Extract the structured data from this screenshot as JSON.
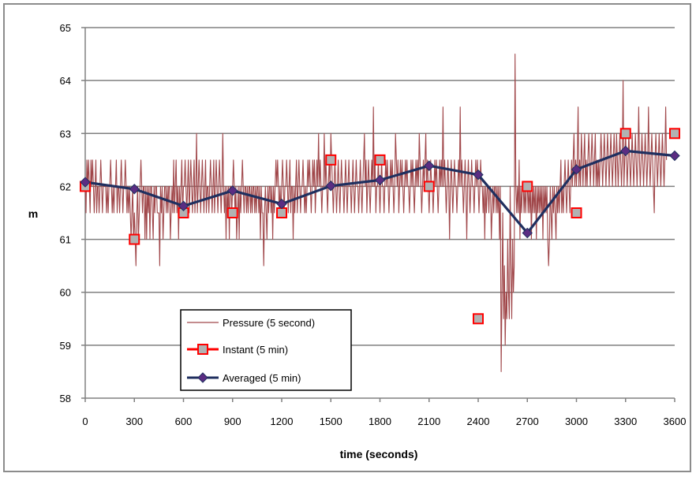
{
  "chart_data": {
    "type": "line",
    "title": "",
    "xlabel": "time (seconds)",
    "ylabel": "m",
    "xlim": [
      0,
      3600
    ],
    "ylim": [
      58,
      65
    ],
    "x_ticks": [
      0,
      300,
      600,
      900,
      1200,
      1500,
      1800,
      2100,
      2400,
      2700,
      3000,
      3300,
      3600
    ],
    "y_ticks": [
      58,
      59,
      60,
      61,
      62,
      63,
      64,
      65
    ],
    "grid": "horizontal",
    "legend_position": "bottom-left",
    "colors": {
      "pressure": "#a0474a",
      "instant": "#ff0000",
      "instant_fill": "#b2b2b2",
      "averaged": "#1f2f5f",
      "averaged_marker": "#5b2d82",
      "grid": "#808080"
    },
    "series": [
      {
        "name": "Pressure (5 second)",
        "sampling_seconds": 5,
        "values": [
          62,
          61.5,
          62.5,
          62,
          62.5,
          62,
          61.5,
          62.5,
          62,
          62.5,
          62,
          61.5,
          62,
          62.5,
          61.5,
          62,
          62,
          61.5,
          62,
          62.5,
          62,
          61.5,
          62,
          62,
          62,
          62,
          61.5,
          62,
          61.5,
          62,
          62,
          62.5,
          62,
          61.5,
          62,
          61.5,
          62,
          62,
          62.5,
          61.5,
          62,
          62,
          61.5,
          62,
          62.5,
          62,
          61.5,
          62,
          62,
          62.5,
          62,
          61.5,
          62,
          61.5,
          62,
          61.5,
          61,
          61.5,
          62,
          61,
          61.5,
          61,
          60.5,
          61.5,
          62,
          61,
          61.5,
          62,
          62.5,
          62,
          61.5,
          62,
          62,
          61,
          62,
          61,
          62,
          61.5,
          62,
          61,
          62,
          62,
          61.5,
          61,
          62,
          61.5,
          62,
          62,
          61.5,
          61.5,
          61.5,
          60.5,
          62,
          61.5,
          62,
          61,
          61.5,
          62,
          62,
          61.5,
          62,
          61.5,
          62,
          62,
          61,
          61.5,
          62,
          61.5,
          62.5,
          61.5,
          62,
          62.5,
          61.5,
          62,
          61,
          62,
          61.5,
          62,
          62.5,
          61.5,
          62,
          62,
          62.5,
          62,
          61.5,
          62,
          62.5,
          61.5,
          62,
          62.5,
          62,
          61.5,
          62,
          62.5,
          61.5,
          62,
          63,
          61.5,
          62,
          62.5,
          62,
          61.5,
          62,
          62.5,
          62,
          61.5,
          62,
          62.5,
          61.5,
          62,
          62,
          61.5,
          62,
          62.5,
          62,
          61.5,
          62,
          62.5,
          61.5,
          62,
          62.5,
          62,
          61.5,
          62,
          62.5,
          62,
          61.5,
          62,
          63,
          62,
          61.5,
          62,
          61,
          62,
          61.5,
          62,
          61,
          62,
          62,
          61.5,
          62,
          62.5,
          62,
          61.5,
          62,
          61,
          61.5,
          62,
          61,
          62,
          61.5,
          62,
          62.5,
          62,
          61.5,
          62,
          62,
          61.5,
          62,
          61.5,
          62,
          62,
          61.5,
          62,
          61.5,
          62,
          62,
          61.5,
          62,
          61.5,
          62,
          62,
          61.5,
          62,
          61,
          62,
          61.5,
          61.5,
          60.5,
          61.5,
          62,
          61.5,
          61,
          62,
          61.5,
          62,
          62,
          61.5,
          62,
          61,
          62,
          61.5,
          62,
          62.5,
          62,
          62.5,
          62,
          61.5,
          62,
          61.5,
          62,
          62.5,
          62,
          61.5,
          62,
          62,
          62.5,
          62,
          61.5,
          62,
          62.5,
          61.5,
          62,
          62,
          61,
          62,
          61.5,
          62,
          62.5,
          61.5,
          62,
          62.5,
          62,
          61.5,
          62,
          62,
          62.5,
          62,
          61.5,
          62,
          61.5,
          62,
          62.5,
          62,
          62.5,
          62,
          61.5,
          62,
          62.5,
          62,
          62.5,
          61.5,
          62,
          62.5,
          62,
          63,
          62,
          62.5,
          62,
          61.5,
          62,
          62,
          63,
          62,
          62.5,
          62,
          61.5,
          62,
          62.5,
          62,
          63,
          62.5,
          62,
          61.5,
          62,
          62.5,
          62,
          61.5,
          62,
          62.5,
          62,
          61.5,
          62,
          62.5,
          62,
          62,
          61.5,
          62,
          62.5,
          62,
          61.5,
          62,
          62.5,
          62,
          62,
          61.5,
          62,
          62.5,
          62,
          61.5,
          62,
          62.5,
          62,
          62,
          61.5,
          62,
          62.5,
          62,
          61.5,
          62,
          62.5,
          63,
          62,
          62.5,
          61.5,
          62,
          62.5,
          62,
          61.5,
          62,
          62.5,
          62,
          63.5,
          62,
          62.5,
          61.5,
          62,
          62,
          62.5,
          62,
          61.5,
          62,
          62.5,
          62,
          62,
          61.5,
          62,
          62.5,
          62,
          62.5,
          62,
          61.5,
          62,
          62.5,
          62,
          62.5,
          62,
          61.5,
          62,
          63,
          62.5,
          62,
          62.5,
          61.5,
          62,
          62.5,
          62,
          62.5,
          62,
          61.5,
          62,
          62.5,
          62,
          62.5,
          62,
          62,
          61.5,
          62,
          62.5,
          62,
          62.5,
          62,
          61.5,
          62,
          62.5,
          62,
          62.5,
          62,
          63,
          62.5,
          62,
          61.5,
          62,
          62.5,
          62,
          62.5,
          63,
          62,
          62.5,
          62,
          61.5,
          62,
          62.5,
          62,
          62,
          61.5,
          62,
          62.5,
          62,
          62.5,
          62,
          61.5,
          62,
          62.5,
          62,
          62.5,
          62,
          63.5,
          62,
          62.5,
          62,
          61.5,
          62,
          62.5,
          62,
          61,
          62,
          62.5,
          62,
          61.5,
          62,
          62.5,
          62,
          62,
          61.5,
          62,
          62.5,
          62,
          63.5,
          62,
          62.5,
          62,
          61.5,
          62,
          62.5,
          62,
          61,
          62,
          62.5,
          62,
          61.5,
          62,
          62.5,
          62,
          62,
          61.5,
          62,
          62.5,
          62,
          62.5,
          62,
          61.5,
          62,
          62.5,
          62,
          62,
          61.5,
          62,
          61,
          62,
          61.5,
          62,
          62,
          61.5,
          62,
          62,
          61,
          61.5,
          62,
          61.5,
          62,
          62,
          61.5,
          62,
          61.5,
          62,
          61,
          62,
          58.5,
          60,
          61.5,
          59.5,
          60.5,
          59,
          60,
          59.5,
          61,
          60,
          59.5,
          62,
          60.5,
          59.5,
          61,
          60,
          60.5,
          64.5,
          62,
          61.5,
          62,
          61.5,
          62.5,
          61,
          62,
          61.5,
          62,
          62,
          61.5,
          62,
          61.5,
          62,
          62,
          61.5,
          62,
          61.5,
          62,
          61,
          62,
          61.5,
          62,
          61.5,
          62,
          61,
          62,
          61.5,
          62,
          61.5,
          62,
          61.5,
          62,
          61,
          62,
          61.5,
          62,
          61.5,
          62,
          61,
          60.5,
          61,
          62,
          61.5,
          61,
          62,
          61.5,
          62,
          61.5,
          61,
          62,
          61.5,
          62,
          61.5,
          62,
          62.5,
          61.5,
          62,
          61.5,
          62,
          62.5,
          62,
          61.5,
          62,
          62.5,
          62,
          61.5,
          62,
          62.5,
          62,
          62.5,
          63,
          62,
          62.5,
          62,
          62.5,
          63.5,
          62,
          62.5,
          62,
          63,
          62.5,
          62,
          62.5,
          63,
          62,
          62.5,
          62,
          62.5,
          63,
          62.5,
          62,
          62.5,
          63,
          62.5,
          62,
          62.5,
          63,
          62,
          62.5,
          62,
          62.5,
          62,
          62.5,
          63,
          62.5,
          62,
          62.5,
          63,
          62.5,
          62,
          62.5,
          63,
          62.5,
          62,
          62.5,
          63,
          62.5,
          62,
          62.5,
          63,
          62.5,
          62,
          63,
          62.5,
          62,
          62.5,
          63,
          62.5,
          62,
          62.5,
          64,
          62,
          62.5,
          63,
          62.5,
          62,
          62.5,
          63,
          62.5,
          62,
          62.5,
          63,
          62.5,
          62,
          62.5,
          63,
          62.5,
          62,
          62.5,
          63.5,
          62.5,
          62,
          62.5,
          63,
          62.5,
          62,
          62.5,
          63,
          62.5,
          62,
          62.5,
          63.5,
          62.5,
          62,
          62.5,
          63,
          62.5,
          62,
          61.5,
          62.5,
          63,
          62.5,
          62,
          62.5,
          63,
          62.5,
          62,
          62.5,
          63,
          62.5,
          62,
          62.5,
          63.5,
          62.5
        ]
      },
      {
        "name": "Instant  (5 min)",
        "x": [
          0,
          300,
          600,
          900,
          1200,
          1500,
          1800,
          2100,
          2400,
          2700,
          3000,
          3300,
          3600
        ],
        "values": [
          62,
          61,
          61.5,
          61.5,
          61.5,
          62.5,
          62.5,
          62,
          59.5,
          62,
          61.5,
          63,
          63
        ]
      },
      {
        "name": "Averaged (5 min)",
        "x": [
          0,
          300,
          600,
          900,
          1200,
          1500,
          1800,
          2100,
          2400,
          2700,
          3000,
          3300,
          3600
        ],
        "values": [
          62.08,
          61.95,
          61.63,
          61.92,
          61.67,
          62.01,
          62.12,
          62.39,
          62.22,
          61.12,
          62.32,
          62.67,
          62.58
        ]
      }
    ]
  }
}
